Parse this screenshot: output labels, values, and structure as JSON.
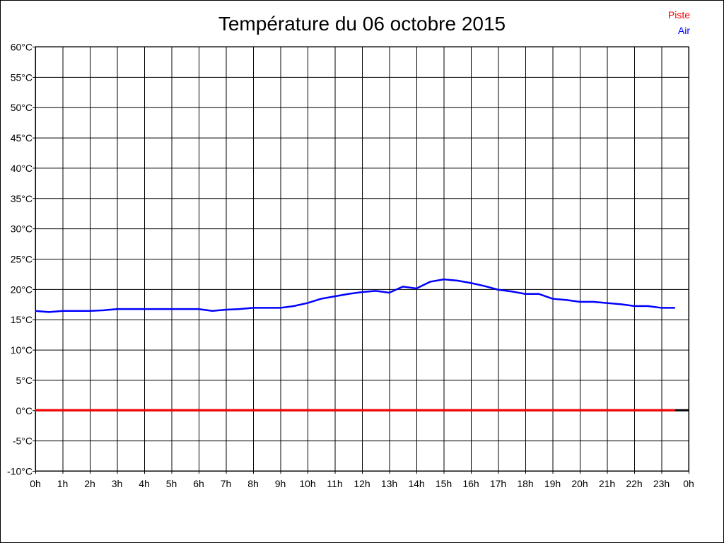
{
  "chart_data": {
    "type": "line",
    "title": "Température du 06 octobre 2015",
    "xlabel": "",
    "ylabel": "",
    "x_tick_labels": [
      "0h",
      "1h",
      "2h",
      "3h",
      "4h",
      "5h",
      "6h",
      "7h",
      "8h",
      "9h",
      "10h",
      "11h",
      "12h",
      "13h",
      "14h",
      "15h",
      "16h",
      "17h",
      "18h",
      "19h",
      "20h",
      "21h",
      "22h",
      "23h",
      "0h"
    ],
    "y_tick_labels": [
      "60°C",
      "55°C",
      "50°C",
      "45°C",
      "40°C",
      "35°C",
      "30°C",
      "25°C",
      "20°C",
      "15°C",
      "10°C",
      "5°C",
      "0°C",
      "-5°C",
      "-10°C"
    ],
    "xlim": [
      0,
      24
    ],
    "ylim": [
      -10,
      60
    ],
    "grid": true,
    "legend_placement": "top-right",
    "x": [
      0,
      0.5,
      1,
      1.5,
      2,
      2.5,
      3,
      3.5,
      4,
      4.5,
      5,
      5.5,
      6,
      6.5,
      7,
      7.5,
      8,
      8.5,
      9,
      9.5,
      10,
      10.5,
      11,
      11.5,
      12,
      12.5,
      13,
      13.5,
      14,
      14.5,
      15,
      15.5,
      16,
      16.5,
      17,
      17.5,
      18,
      18.5,
      19,
      19.5,
      20,
      20.5,
      21,
      21.5,
      22,
      22.5,
      23,
      23.5
    ],
    "series": [
      {
        "name": "Piste",
        "color": "#ff0000",
        "values": [
          0,
          0,
          0,
          0,
          0,
          0,
          0,
          0,
          0,
          0,
          0,
          0,
          0,
          0,
          0,
          0,
          0,
          0,
          0,
          0,
          0,
          0,
          0,
          0,
          0,
          0,
          0,
          0,
          0,
          0,
          0,
          0,
          0,
          0,
          0,
          0,
          0,
          0,
          0,
          0,
          0,
          0,
          0,
          0,
          0,
          0,
          0,
          0
        ]
      },
      {
        "name": "Air",
        "color": "#0000ff",
        "values": [
          16.4,
          16.2,
          16.4,
          16.4,
          16.4,
          16.5,
          16.7,
          16.7,
          16.7,
          16.7,
          16.7,
          16.7,
          16.7,
          16.4,
          16.6,
          16.7,
          16.9,
          16.9,
          16.9,
          17.2,
          17.7,
          18.4,
          18.8,
          19.2,
          19.5,
          19.7,
          19.4,
          20.4,
          20.1,
          21.2,
          21.6,
          21.4,
          21.0,
          20.5,
          19.9,
          19.6,
          19.2,
          19.2,
          18.4,
          18.2,
          17.9,
          17.9,
          17.7,
          17.5,
          17.2,
          17.2,
          16.9,
          16.9
        ]
      }
    ]
  }
}
